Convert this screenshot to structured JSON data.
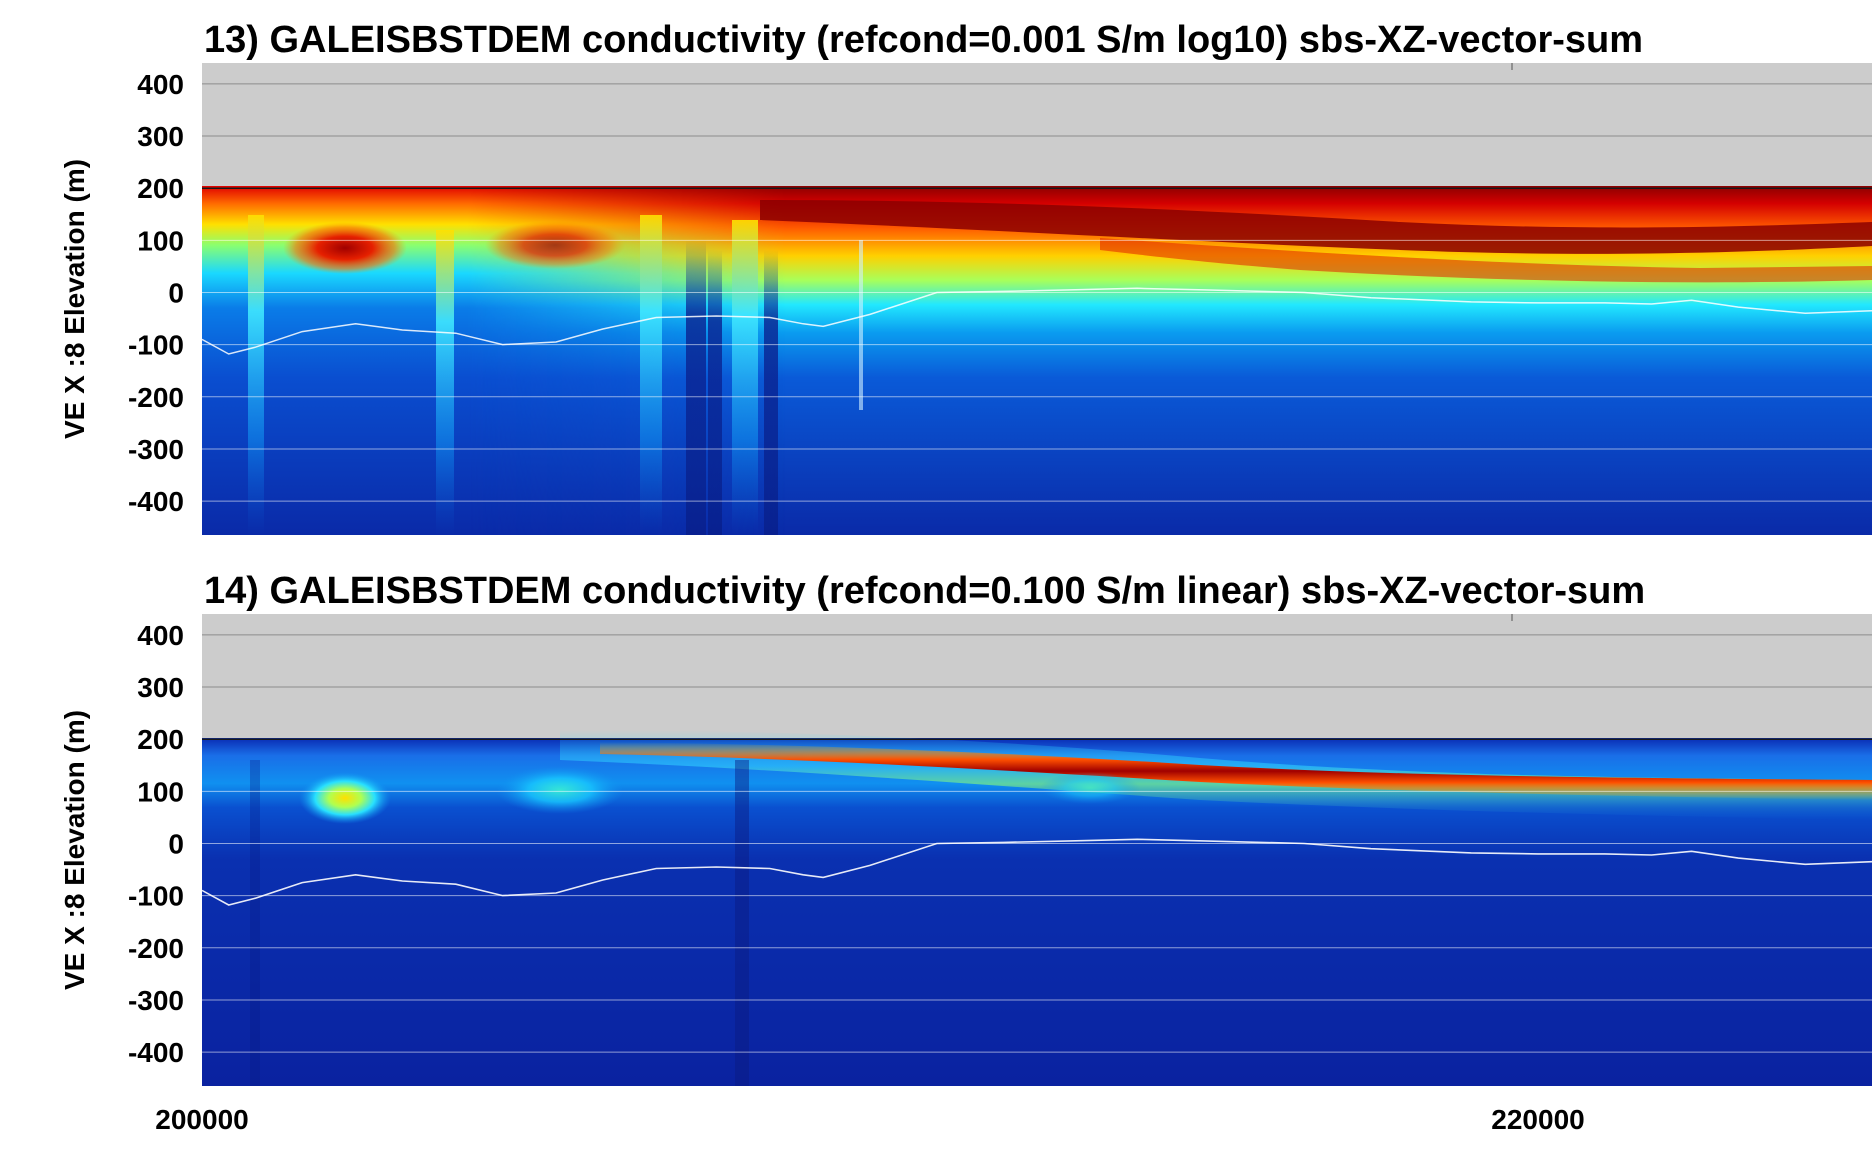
{
  "chart_data": [
    {
      "type": "heatmap",
      "title": "13) GALEISBSTDEM conductivity (refcond=0.001 S/m log10) sbs-XZ-vector-sum",
      "ylabel": "VE X :8 Elevation (m)",
      "xlabel": "",
      "yticks": [
        "400",
        "300",
        "200",
        "100",
        "0",
        "-100",
        "-200",
        "-300",
        "-400"
      ],
      "ylim": [
        -465,
        440
      ],
      "xlim": [
        200000,
        225000
      ],
      "scale": "log10",
      "grid": true,
      "colormap": "jet",
      "colors": {
        "no_data": "#cccccc",
        "low": "#0a1e9e",
        "high": "#8b0000"
      },
      "surface_profile": {
        "x": [
          200000,
          225000
        ],
        "y": [
          200,
          200
        ]
      },
      "white_line": {
        "x": [
          200000,
          200400,
          200800,
          201500,
          202300,
          203000,
          203800,
          204500,
          205300,
          206000,
          206800,
          207700,
          208500,
          209000,
          209300,
          210000,
          211000,
          212000,
          213000,
          214000,
          215000,
          216500,
          217500,
          219000,
          220000,
          221000,
          221700,
          222300,
          223000,
          224000,
          225000
        ],
        "y": [
          -90,
          -118,
          -105,
          -75,
          -60,
          -72,
          -78,
          -100,
          -95,
          -70,
          -48,
          -45,
          -48,
          -60,
          -65,
          -42,
          0,
          2,
          5,
          8,
          5,
          0,
          -10,
          -18,
          -20,
          -20,
          -22,
          -15,
          -28,
          -40,
          -35
        ]
      }
    },
    {
      "type": "heatmap",
      "title": "14) GALEISBSTDEM conductivity (refcond=0.100 S/m linear) sbs-XZ-vector-sum",
      "ylabel": "VE X :8 Elevation (m)",
      "xlabel": "",
      "yticks": [
        "400",
        "300",
        "200",
        "100",
        "0",
        "-100",
        "-200",
        "-300",
        "-400"
      ],
      "ylim": [
        -465,
        440
      ],
      "xlim": [
        200000,
        225000
      ],
      "scale": "linear",
      "grid": true,
      "colormap": "jet",
      "colors": {
        "no_data": "#cccccc",
        "low": "#0a1e9e",
        "high": "#8b0000"
      },
      "surface_profile": {
        "x": [
          200000,
          225000
        ],
        "y": [
          200,
          200
        ]
      },
      "white_line": {
        "x": [
          200000,
          200400,
          200800,
          201500,
          202300,
          203000,
          203800,
          204500,
          205300,
          206000,
          206800,
          207700,
          208500,
          209000,
          209300,
          210000,
          211000,
          212000,
          213000,
          214000,
          215000,
          216500,
          217500,
          219000,
          220000,
          221000,
          221700,
          222300,
          223000,
          224000,
          225000
        ],
        "y": [
          -90,
          -118,
          -105,
          -75,
          -60,
          -72,
          -78,
          -100,
          -95,
          -70,
          -48,
          -45,
          -48,
          -60,
          -65,
          -42,
          0,
          2,
          5,
          8,
          5,
          0,
          -10,
          -18,
          -20,
          -20,
          -22,
          -15,
          -28,
          -40,
          -35
        ]
      }
    }
  ],
  "xticks": [
    "200000",
    "220000"
  ],
  "xtick_values": [
    200000,
    220000
  ]
}
